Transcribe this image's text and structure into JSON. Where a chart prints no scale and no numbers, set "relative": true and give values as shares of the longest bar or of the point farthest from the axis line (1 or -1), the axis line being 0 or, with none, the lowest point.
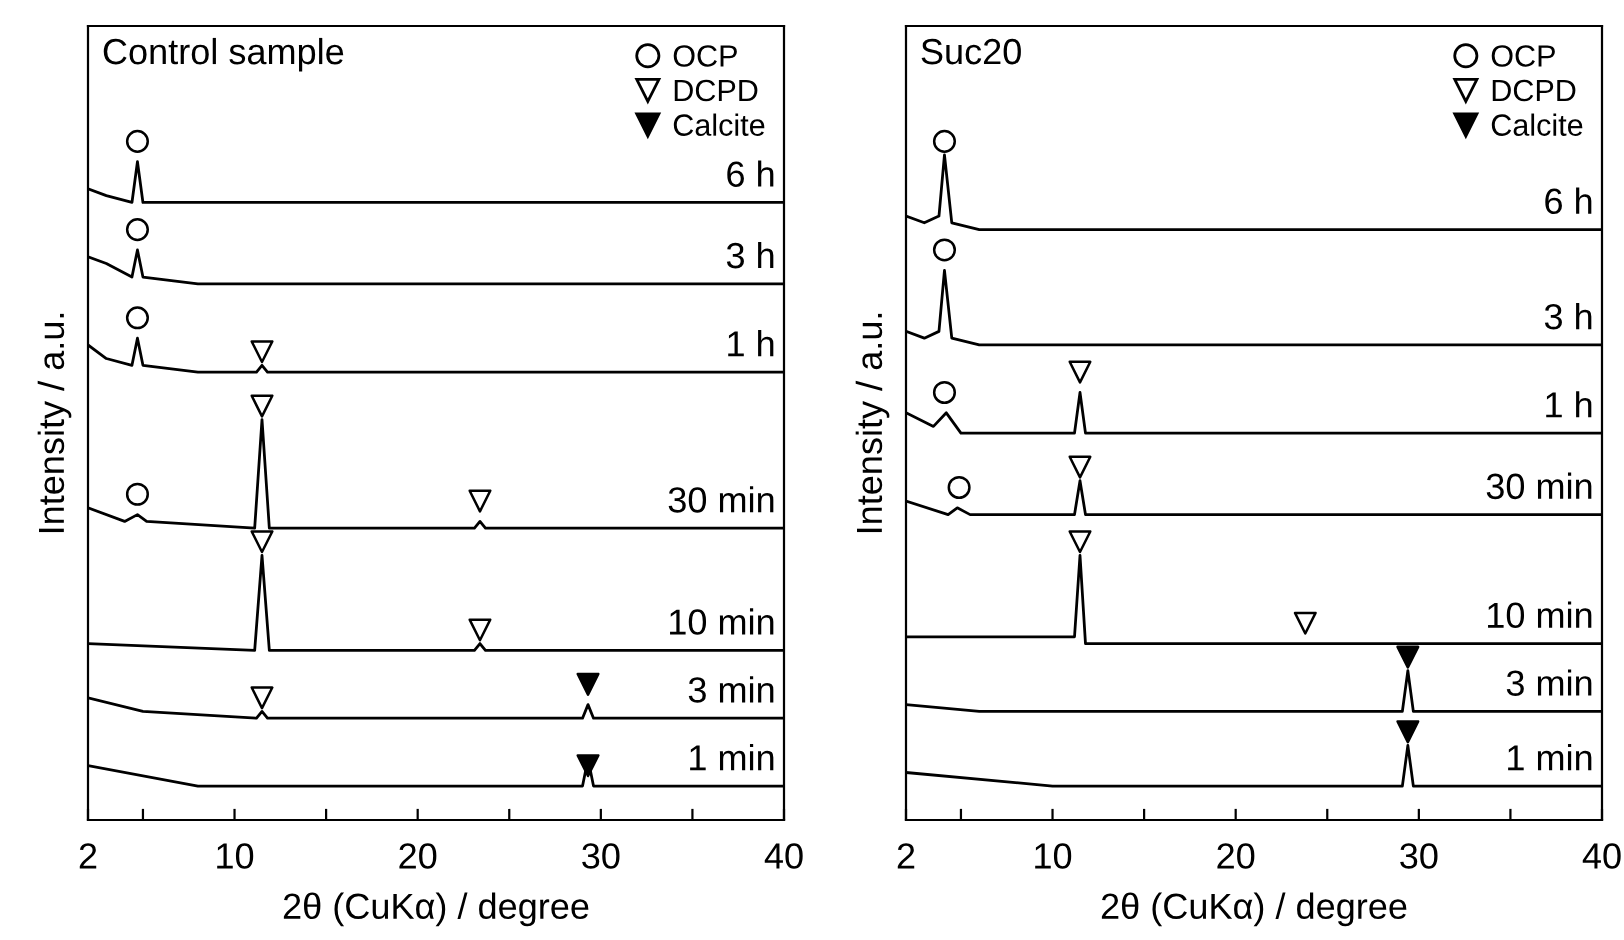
{
  "chart_data": [
    {
      "type": "line",
      "title": "Control sample",
      "xlabel": "2θ (CuKα) / degree",
      "ylabel": "Intensity / a.u.",
      "relative": true,
      "xlim": [
        2,
        40
      ],
      "xticks": [
        2,
        {
          "value": 5,
          "label": null
        },
        10,
        {
          "value": 15,
          "label": null
        },
        20,
        {
          "value": 25,
          "label": null
        },
        30,
        {
          "value": 35,
          "label": null
        },
        40
      ],
      "tick_labels": "x",
      "grid": false,
      "legend": "top right",
      "series": [
        {
          "name": "6 h",
          "color": "#000000",
          "x": [
            2,
            3,
            4.4,
            4.7,
            5.0,
            8,
            40
          ],
          "values": [
            0.93,
            0.92,
            0.91,
            0.97,
            0.91,
            0.91,
            0.91
          ]
        },
        {
          "name": "3 h",
          "color": "#000000",
          "x": [
            2,
            3,
            4.4,
            4.7,
            5.0,
            8,
            40
          ],
          "values": [
            0.83,
            0.82,
            0.8,
            0.84,
            0.8,
            0.79,
            0.79
          ]
        },
        {
          "name": "1 h",
          "color": "#000000",
          "x": [
            2,
            3,
            4.4,
            4.7,
            5.0,
            8,
            11.2,
            11.5,
            11.8,
            40
          ],
          "values": [
            0.7,
            0.68,
            0.67,
            0.71,
            0.67,
            0.66,
            0.66,
            0.67,
            0.66,
            0.66
          ]
        },
        {
          "name": "30 min",
          "color": "#000000",
          "x": [
            2,
            4,
            4.7,
            5.2,
            11.1,
            11.5,
            11.9,
            23.1,
            23.4,
            23.7,
            40
          ],
          "values": [
            0.46,
            0.44,
            0.45,
            0.44,
            0.43,
            0.59,
            0.43,
            0.43,
            0.44,
            0.43,
            0.43
          ]
        },
        {
          "name": "10 min",
          "color": "#000000",
          "x": [
            2,
            11.1,
            11.5,
            11.9,
            23.1,
            23.4,
            23.7,
            40
          ],
          "values": [
            0.26,
            0.25,
            0.39,
            0.25,
            0.25,
            0.26,
            0.25,
            0.25
          ]
        },
        {
          "name": "3 min",
          "color": "#000000",
          "x": [
            2,
            5,
            11.2,
            11.5,
            11.8,
            29.0,
            29.3,
            29.6,
            40
          ],
          "values": [
            0.18,
            0.16,
            0.15,
            0.16,
            0.15,
            0.15,
            0.17,
            0.15,
            0.15
          ]
        },
        {
          "name": "1 min",
          "color": "#000000",
          "x": [
            2,
            8,
            29.0,
            29.3,
            29.6,
            40
          ],
          "values": [
            0.08,
            0.05,
            0.05,
            0.09,
            0.05,
            0.05
          ]
        },
        {
          "name": "OCP",
          "type": "scatter",
          "marker": "circle",
          "color": "#ffffff",
          "x": [
            4.7,
            4.7,
            4.7,
            4.7
          ],
          "values": [
            1.0,
            0.87,
            0.74,
            0.48
          ]
        },
        {
          "name": "DCPD",
          "type": "scatter",
          "marker": "triangle",
          "color": "#ffffff",
          "x": [
            11.5,
            11.5,
            23.4,
            11.5,
            23.4,
            11.5
          ],
          "values": [
            0.69,
            0.61,
            0.47,
            0.41,
            0.28,
            0.18
          ]
        },
        {
          "name": "Calcite",
          "type": "scatter",
          "marker": "triangle",
          "color": "#000000",
          "x": [
            29.3,
            29.3
          ],
          "values": [
            0.2,
            0.08
          ]
        }
      ]
    },
    {
      "type": "line",
      "title": "Suc20",
      "xlabel": "2θ (CuKα) / degree",
      "ylabel": "Intensity / a.u.",
      "relative": true,
      "xlim": [
        2,
        40
      ],
      "xticks": [
        2,
        {
          "value": 5,
          "label": null
        },
        10,
        {
          "value": 15,
          "label": null
        },
        20,
        {
          "value": 25,
          "label": null
        },
        30,
        {
          "value": 35,
          "label": null
        },
        40
      ],
      "tick_labels": "x",
      "grid": false,
      "legend": "top right",
      "series": [
        {
          "name": "6 h",
          "color": "#000000",
          "x": [
            2,
            3,
            3.8,
            4.1,
            4.5,
            6,
            40
          ],
          "values": [
            0.89,
            0.88,
            0.89,
            0.98,
            0.88,
            0.87,
            0.87
          ]
        },
        {
          "name": "3 h",
          "color": "#000000",
          "x": [
            2,
            3,
            3.8,
            4.1,
            4.5,
            6,
            40
          ],
          "values": [
            0.72,
            0.71,
            0.72,
            0.81,
            0.71,
            0.7,
            0.7
          ]
        },
        {
          "name": "1 h",
          "color": "#000000",
          "x": [
            2,
            3.5,
            4.2,
            5,
            11.2,
            11.5,
            11.8,
            40
          ],
          "values": [
            0.6,
            0.58,
            0.6,
            0.57,
            0.57,
            0.63,
            0.57,
            0.57
          ]
        },
        {
          "name": "30 min",
          "color": "#000000",
          "x": [
            2,
            4.3,
            4.8,
            5.5,
            11.2,
            11.5,
            11.8,
            40
          ],
          "values": [
            0.47,
            0.45,
            0.46,
            0.45,
            0.45,
            0.5,
            0.45,
            0.45
          ]
        },
        {
          "name": "10 min",
          "color": "#000000",
          "x": [
            2,
            11.2,
            11.5,
            11.8,
            40
          ],
          "values": [
            0.27,
            0.27,
            0.39,
            0.26,
            0.26
          ]
        },
        {
          "name": "3 min",
          "color": "#000000",
          "x": [
            2,
            6,
            29.1,
            29.4,
            29.7,
            40
          ],
          "values": [
            0.17,
            0.16,
            0.16,
            0.22,
            0.16,
            0.16
          ]
        },
        {
          "name": "1 min",
          "color": "#000000",
          "x": [
            2,
            10,
            29.1,
            29.4,
            29.7,
            40
          ],
          "values": [
            0.07,
            0.05,
            0.05,
            0.11,
            0.05,
            0.05
          ]
        },
        {
          "name": "OCP",
          "type": "scatter",
          "marker": "circle",
          "color": "#ffffff",
          "x": [
            4.1,
            4.1,
            4.1,
            4.9
          ],
          "values": [
            1.0,
            0.84,
            0.63,
            0.49
          ]
        },
        {
          "name": "DCPD",
          "type": "scatter",
          "marker": "triangle",
          "color": "#ffffff",
          "x": [
            11.5,
            11.5,
            11.5,
            23.8
          ],
          "values": [
            0.66,
            0.52,
            0.41,
            0.29
          ]
        },
        {
          "name": "Calcite",
          "type": "scatter",
          "marker": "triangle",
          "color": "#000000",
          "x": [
            29.4,
            29.4
          ],
          "values": [
            0.24,
            0.13
          ]
        }
      ]
    }
  ]
}
